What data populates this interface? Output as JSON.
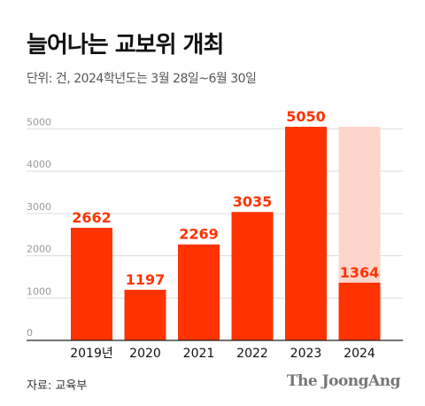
{
  "title": "늘어나는 교보위 개최",
  "subtitle": "단위: 건, 2024학년도는 3월 28일~6월 30일",
  "source": "자료: 교육부",
  "logo": "The JoongAng",
  "colors": {
    "bar": "#ff3300",
    "ghost": "#fdd5cb",
    "label": "#ff3300",
    "grid": "#dddddd",
    "tick": "#999999"
  },
  "chart_data": {
    "type": "bar",
    "categories": [
      "2019년",
      "2020",
      "2021",
      "2022",
      "2023",
      "2024"
    ],
    "values": [
      2662,
      1197,
      2269,
      3035,
      5050,
      1364
    ],
    "data_labels": [
      "2662",
      "1197",
      "2269",
      "3035",
      "5050",
      "1364"
    ],
    "ghost_bar": {
      "category": "2024",
      "value": 5050
    },
    "yticks": [
      0,
      1000,
      2000,
      3000,
      4000,
      5000
    ],
    "ytick_labels": [
      "0",
      "1000",
      "2000",
      "3000",
      "4000",
      "5000"
    ],
    "ylim": [
      0,
      5050
    ],
    "grid": true,
    "title": "늘어나는 교보위 개최",
    "xlabel": "",
    "ylabel": ""
  }
}
